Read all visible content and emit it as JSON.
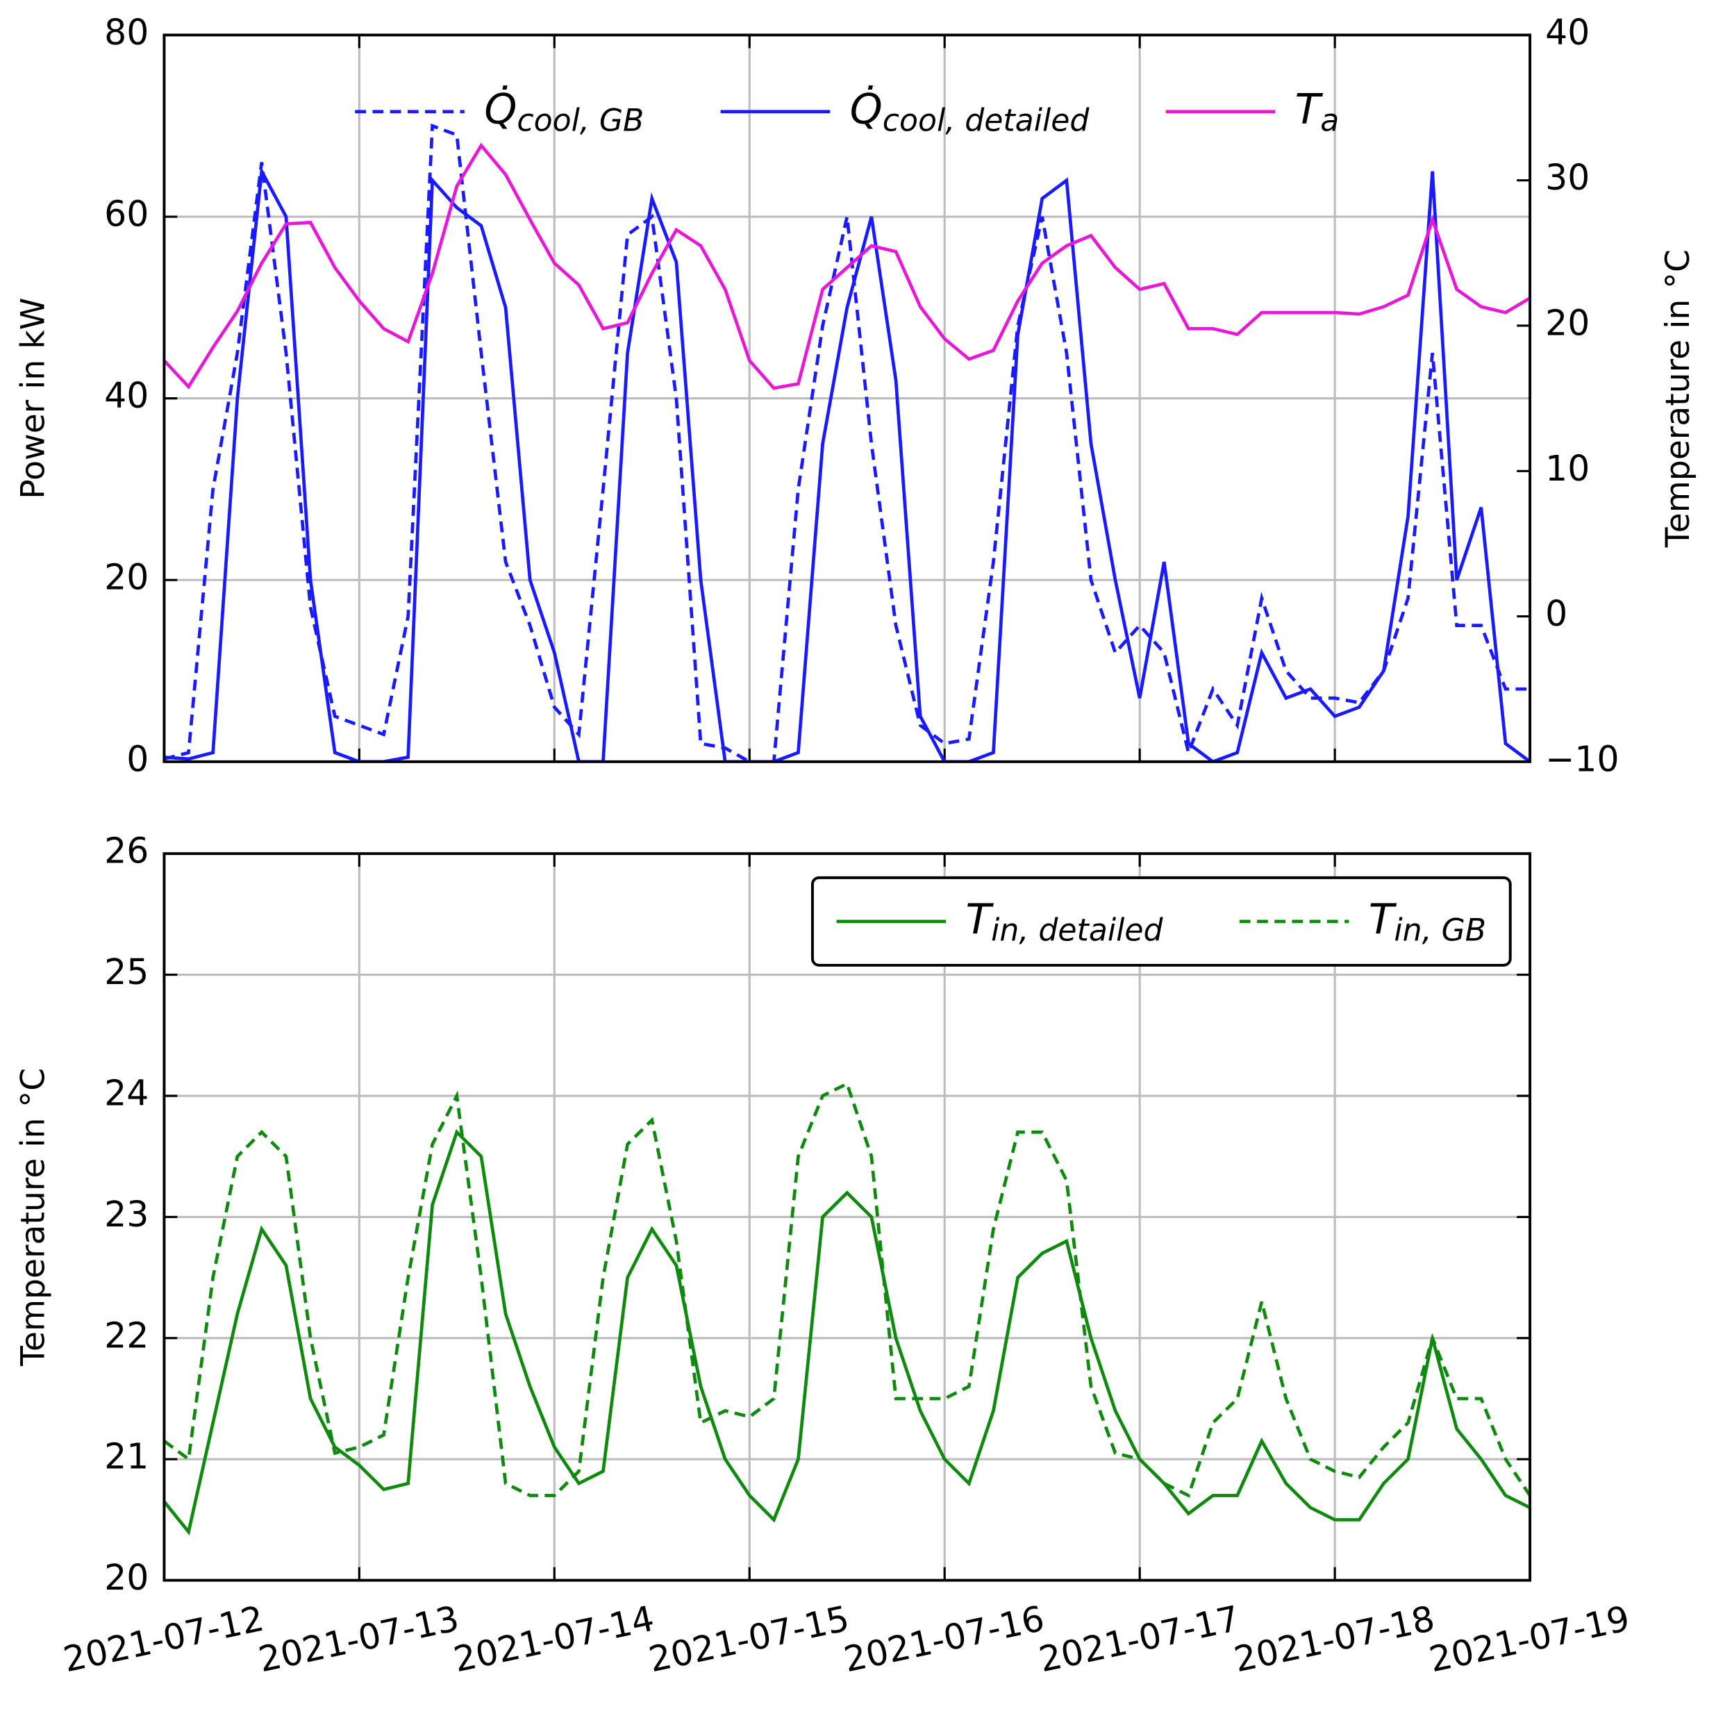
{
  "chart_data": [
    {
      "type": "line",
      "ylabel": "Power in kW",
      "y2label": "Temperature in °C",
      "x": [
        "2021-07-12 00:00",
        "2021-07-12 03:00",
        "2021-07-12 06:00",
        "2021-07-12 09:00",
        "2021-07-12 12:00",
        "2021-07-12 15:00",
        "2021-07-12 18:00",
        "2021-07-12 21:00",
        "2021-07-13 00:00",
        "2021-07-13 03:00",
        "2021-07-13 06:00",
        "2021-07-13 09:00",
        "2021-07-13 12:00",
        "2021-07-13 15:00",
        "2021-07-13 18:00",
        "2021-07-13 21:00",
        "2021-07-14 00:00",
        "2021-07-14 03:00",
        "2021-07-14 06:00",
        "2021-07-14 09:00",
        "2021-07-14 12:00",
        "2021-07-14 15:00",
        "2021-07-14 18:00",
        "2021-07-14 21:00",
        "2021-07-15 00:00",
        "2021-07-15 03:00",
        "2021-07-15 06:00",
        "2021-07-15 09:00",
        "2021-07-15 12:00",
        "2021-07-15 15:00",
        "2021-07-15 18:00",
        "2021-07-15 21:00",
        "2021-07-16 00:00",
        "2021-07-16 03:00",
        "2021-07-16 06:00",
        "2021-07-16 09:00",
        "2021-07-16 12:00",
        "2021-07-16 15:00",
        "2021-07-16 18:00",
        "2021-07-16 21:00",
        "2021-07-17 00:00",
        "2021-07-17 03:00",
        "2021-07-17 06:00",
        "2021-07-17 09:00",
        "2021-07-17 12:00",
        "2021-07-17 15:00",
        "2021-07-17 18:00",
        "2021-07-17 21:00",
        "2021-07-18 00:00",
        "2021-07-18 03:00",
        "2021-07-18 06:00",
        "2021-07-18 09:00",
        "2021-07-18 12:00",
        "2021-07-18 15:00",
        "2021-07-18 18:00",
        "2021-07-18 21:00",
        "2021-07-19 00:00"
      ],
      "xlim": [
        "2021-07-12",
        "2021-07-19"
      ],
      "xticks": [
        "2021-07-12",
        "2021-07-13",
        "2021-07-14",
        "2021-07-15",
        "2021-07-16",
        "2021-07-17",
        "2021-07-18",
        "2021-07-19"
      ],
      "show_xtick_labels": false,
      "ylim": [
        0,
        80
      ],
      "yticks": [
        0,
        20,
        40,
        60,
        80
      ],
      "y2lim": [
        -10,
        40
      ],
      "y2ticks": [
        {
          "value": -10,
          "label": "−10"
        },
        0,
        10,
        20,
        30,
        40
      ],
      "grid": true,
      "legend": "upper center",
      "legend_frame": false,
      "series": [
        {
          "name": "Q̇cool, GB",
          "color": "#1a1aff",
          "linestyle": "dashed",
          "values": [
            0.3,
            1,
            30,
            45,
            66,
            45,
            17,
            5,
            4,
            3,
            16,
            70,
            69,
            45,
            22,
            15,
            6,
            3,
            30,
            58,
            60,
            40,
            2,
            1.5,
            0,
            0,
            30,
            48,
            60,
            35,
            15,
            4,
            2,
            2.5,
            22,
            48,
            60,
            45,
            20,
            12,
            15,
            12,
            1,
            8,
            4,
            18,
            10,
            7,
            7,
            6.5,
            10,
            18,
            45,
            15,
            15,
            8,
            8
          ]
        },
        {
          "name": "Q̇cool, detailed",
          "color": "#1a1aff",
          "linestyle": "solid",
          "values": [
            0.5,
            0.3,
            1,
            40,
            65,
            60,
            20,
            1,
            0,
            0,
            0.5,
            64,
            61,
            59,
            50,
            20,
            12,
            0,
            0,
            45,
            62,
            55,
            20,
            0,
            0,
            0,
            1,
            35,
            50,
            60,
            42,
            5,
            0,
            0,
            1,
            47,
            62,
            64,
            35,
            20,
            7,
            22,
            2,
            0,
            1,
            12,
            7,
            8,
            5,
            6,
            10,
            27,
            65,
            20,
            28,
            2,
            0
          ]
        },
        {
          "name": "Ta",
          "color": "#e619d6",
          "linestyle": "solid",
          "axis": "y2",
          "values": [
            17.6,
            15.8,
            18.5,
            21,
            24.3,
            27,
            27.1,
            24,
            21.7,
            19.8,
            18.9,
            23.6,
            29.6,
            32.4,
            30.4,
            27.3,
            24.3,
            22.8,
            19.8,
            20.2,
            23.6,
            26.6,
            25.5,
            22.5,
            17.6,
            15.7,
            16,
            22.5,
            24,
            25.5,
            25.1,
            21.3,
            19.1,
            17.7,
            18.3,
            21.7,
            24.3,
            25.5,
            26.2,
            24,
            22.5,
            22.9,
            19.8,
            19.8,
            19.4,
            20.9,
            20.9,
            20.9,
            20.9,
            20.8,
            21.3,
            22.1,
            27.3,
            22.5,
            21.3,
            20.9,
            21.9
          ]
        }
      ]
    },
    {
      "type": "line",
      "ylabel": "Temperature in °C",
      "x": [
        "2021-07-12 00:00",
        "2021-07-12 03:00",
        "2021-07-12 06:00",
        "2021-07-12 09:00",
        "2021-07-12 12:00",
        "2021-07-12 15:00",
        "2021-07-12 18:00",
        "2021-07-12 21:00",
        "2021-07-13 00:00",
        "2021-07-13 03:00",
        "2021-07-13 06:00",
        "2021-07-13 09:00",
        "2021-07-13 12:00",
        "2021-07-13 15:00",
        "2021-07-13 18:00",
        "2021-07-13 21:00",
        "2021-07-14 00:00",
        "2021-07-14 03:00",
        "2021-07-14 06:00",
        "2021-07-14 09:00",
        "2021-07-14 12:00",
        "2021-07-14 15:00",
        "2021-07-14 18:00",
        "2021-07-14 21:00",
        "2021-07-15 00:00",
        "2021-07-15 03:00",
        "2021-07-15 06:00",
        "2021-07-15 09:00",
        "2021-07-15 12:00",
        "2021-07-15 15:00",
        "2021-07-15 18:00",
        "2021-07-15 21:00",
        "2021-07-16 00:00",
        "2021-07-16 03:00",
        "2021-07-16 06:00",
        "2021-07-16 09:00",
        "2021-07-16 12:00",
        "2021-07-16 15:00",
        "2021-07-16 18:00",
        "2021-07-16 21:00",
        "2021-07-17 00:00",
        "2021-07-17 03:00",
        "2021-07-17 06:00",
        "2021-07-17 09:00",
        "2021-07-17 12:00",
        "2021-07-17 15:00",
        "2021-07-17 18:00",
        "2021-07-17 21:00",
        "2021-07-18 00:00",
        "2021-07-18 03:00",
        "2021-07-18 06:00",
        "2021-07-18 09:00",
        "2021-07-18 12:00",
        "2021-07-18 15:00",
        "2021-07-18 18:00",
        "2021-07-18 21:00",
        "2021-07-19 00:00"
      ],
      "xlim": [
        "2021-07-12",
        "2021-07-19"
      ],
      "xticks": [
        "2021-07-12",
        "2021-07-13",
        "2021-07-14",
        "2021-07-15",
        "2021-07-16",
        "2021-07-17",
        "2021-07-18",
        "2021-07-19"
      ],
      "show_xtick_labels": true,
      "ylim": [
        20,
        26
      ],
      "yticks": [
        20,
        21,
        22,
        23,
        24,
        25,
        26
      ],
      "grid": true,
      "legend": "upper right",
      "legend_frame": true,
      "series": [
        {
          "name": "Tin, detailed",
          "color": "#0f8a0f",
          "linestyle": "solid",
          "values": [
            20.65,
            20.4,
            21.3,
            22.2,
            22.9,
            22.6,
            21.5,
            21.1,
            20.95,
            20.75,
            20.8,
            23.1,
            23.7,
            23.5,
            22.2,
            21.6,
            21.1,
            20.8,
            20.9,
            22.5,
            22.9,
            22.6,
            21.6,
            21,
            20.7,
            20.5,
            21,
            23,
            23.2,
            23,
            22,
            21.4,
            21,
            20.8,
            21.4,
            22.5,
            22.7,
            22.8,
            22,
            21.4,
            21,
            20.8,
            20.55,
            20.7,
            20.7,
            21.15,
            20.8,
            20.6,
            20.5,
            20.5,
            20.8,
            21,
            22,
            21.25,
            21,
            20.7,
            20.6
          ]
        },
        {
          "name": "Tin, GB",
          "color": "#0f8a0f",
          "linestyle": "dashed",
          "values": [
            21.15,
            21,
            22.5,
            23.5,
            23.7,
            23.5,
            22,
            21.05,
            21.1,
            21.2,
            22.5,
            23.6,
            24,
            22.5,
            20.8,
            20.7,
            20.7,
            20.9,
            22.5,
            23.6,
            23.8,
            22.8,
            21.3,
            21.4,
            21.35,
            21.5,
            23.5,
            24,
            24.1,
            23.5,
            21.5,
            21.5,
            21.5,
            21.6,
            22.9,
            23.7,
            23.7,
            23.3,
            21.6,
            21.05,
            21,
            20.8,
            20.7,
            21.3,
            21.5,
            22.3,
            21.5,
            21,
            20.9,
            20.85,
            21.1,
            21.3,
            22,
            21.5,
            21.5,
            21,
            20.7
          ]
        }
      ]
    }
  ]
}
